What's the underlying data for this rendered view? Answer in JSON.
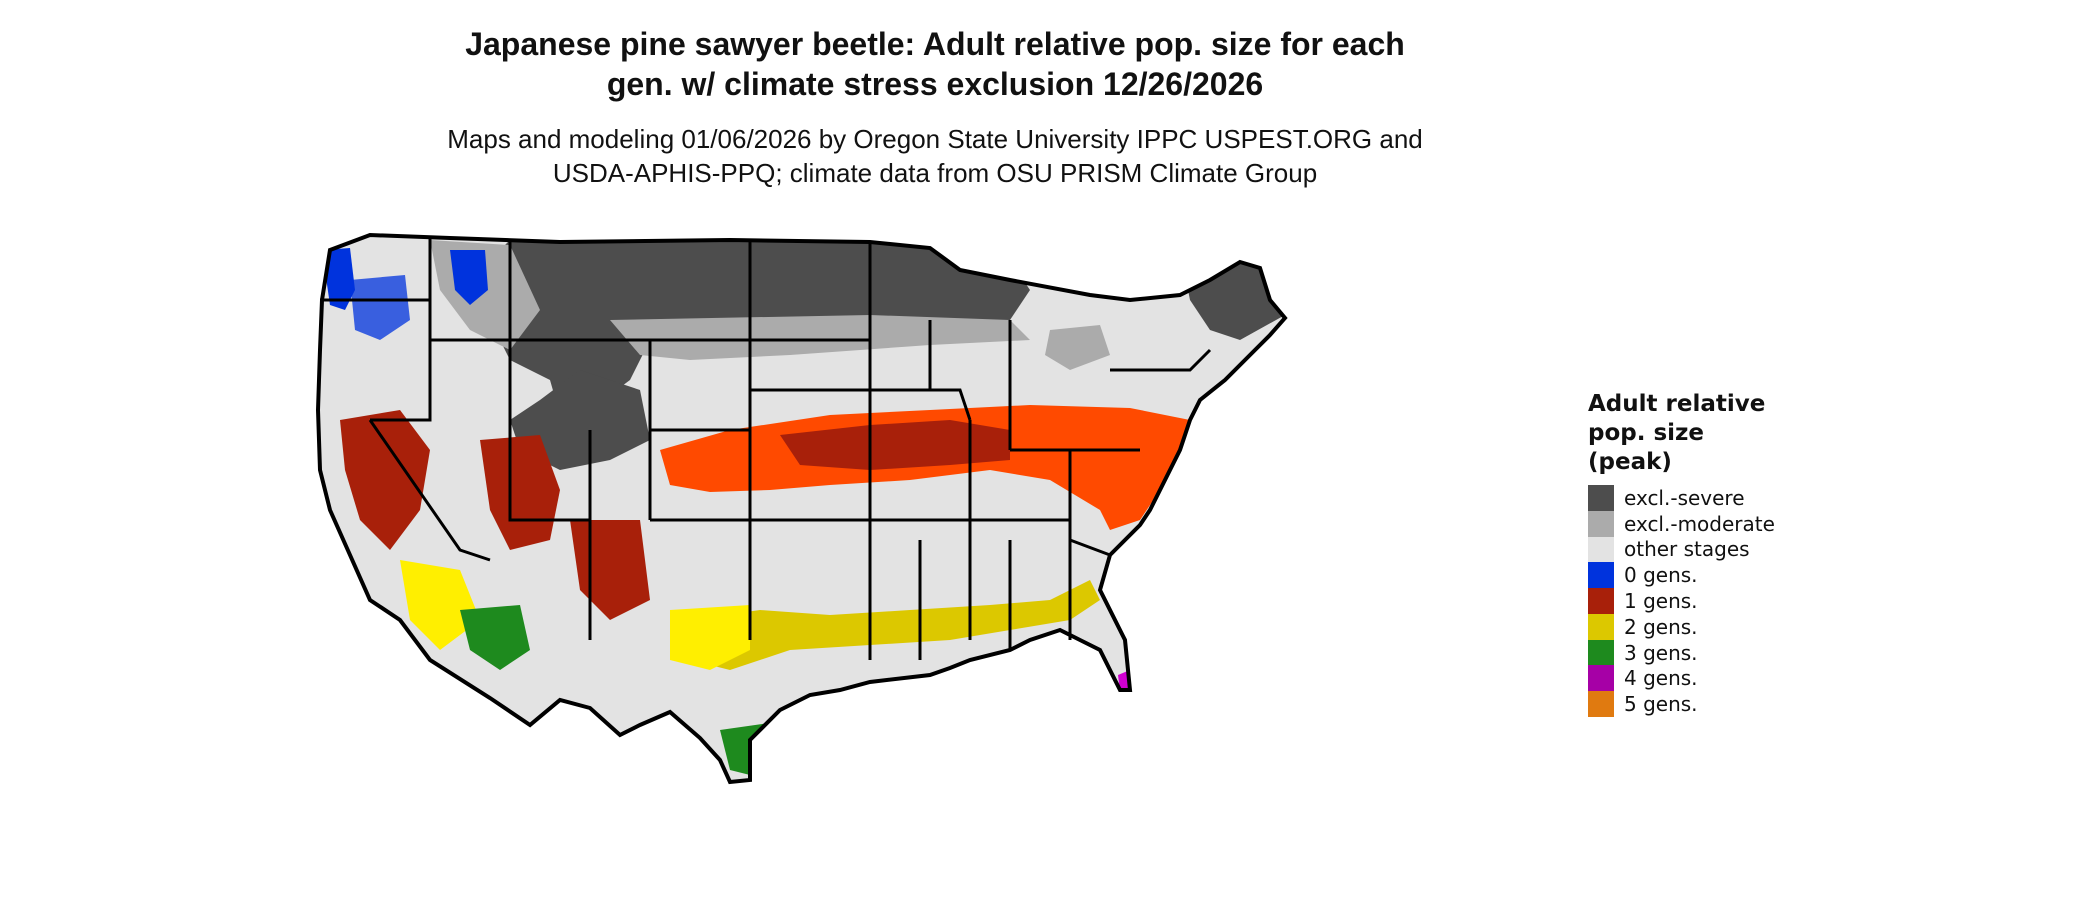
{
  "title_line1": "Japanese pine sawyer beetle: Adult relative pop. size for each",
  "title_line2": "gen. w/ climate stress exclusion 12/26/2026",
  "subtitle_line1": "Maps and modeling 01/06/2026 by Oregon State University IPPC USPEST.ORG and",
  "subtitle_line2": "USDA-APHIS-PPQ; climate data from OSU PRISM Climate Group",
  "legend": {
    "title_line1": "Adult relative",
    "title_line2": "pop. size",
    "title_line3": "(peak)",
    "items": [
      {
        "label": "excl.-severe",
        "color": "#4d4d4d"
      },
      {
        "label": "excl.-moderate",
        "color": "#ababab"
      },
      {
        "label": "other stages",
        "color": "#e3e3e3"
      },
      {
        "label": "0 gens.",
        "color": "#0033dd"
      },
      {
        "label": "1 gens.",
        "color": "#a8200a"
      },
      {
        "label": "2 gens.",
        "color": "#dcc800"
      },
      {
        "label": "3 gens.",
        "color": "#1e8a1e"
      },
      {
        "label": "4 gens.",
        "color": "#a600a6"
      },
      {
        "label": "5 gens.",
        "color": "#e07a10"
      }
    ]
  },
  "map_colors": {
    "excl_severe": "#4d4d4d",
    "excl_moderate": "#ababab",
    "other_stages": "#e3e3e3",
    "gen0": "#0033dd",
    "gen1_dark": "#a8200a",
    "gen1_bright": "#ff4a00",
    "gen2": "#dcc800",
    "gen2_bright": "#ffef00",
    "gen3": "#1e8a1e",
    "gen3_light": "#8ee08e",
    "gen4": "#d000d0",
    "border": "#000000"
  }
}
